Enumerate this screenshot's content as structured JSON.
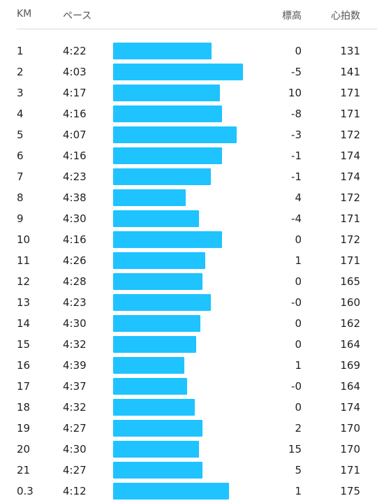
{
  "colors": {
    "bar": "#1ec3ff",
    "header_text": "#555555",
    "divider": "#d9d9d9"
  },
  "header": {
    "km": "KM",
    "pace": "ペース",
    "elevation": "標高",
    "heart_rate": "心拍数"
  },
  "splits": [
    {
      "km": "1",
      "pace": "4:22",
      "pace_fraction": 0.76,
      "elevation": "0",
      "heart_rate": "131"
    },
    {
      "km": "2",
      "pace": "4:03",
      "pace_fraction": 1.0,
      "elevation": "-5",
      "heart_rate": "141"
    },
    {
      "km": "3",
      "pace": "4:17",
      "pace_fraction": 0.82,
      "elevation": "10",
      "heart_rate": "171"
    },
    {
      "km": "4",
      "pace": "4:16",
      "pace_fraction": 0.84,
      "elevation": "-8",
      "heart_rate": "171"
    },
    {
      "km": "5",
      "pace": "4:07",
      "pace_fraction": 0.95,
      "elevation": "-3",
      "heart_rate": "172"
    },
    {
      "km": "6",
      "pace": "4:16",
      "pace_fraction": 0.84,
      "elevation": "-1",
      "heart_rate": "174"
    },
    {
      "km": "7",
      "pace": "4:23",
      "pace_fraction": 0.75,
      "elevation": "-1",
      "heart_rate": "174"
    },
    {
      "km": "8",
      "pace": "4:38",
      "pace_fraction": 0.56,
      "elevation": "4",
      "heart_rate": "172"
    },
    {
      "km": "9",
      "pace": "4:30",
      "pace_fraction": 0.66,
      "elevation": "-4",
      "heart_rate": "171"
    },
    {
      "km": "10",
      "pace": "4:16",
      "pace_fraction": 0.84,
      "elevation": "0",
      "heart_rate": "172"
    },
    {
      "km": "11",
      "pace": "4:26",
      "pace_fraction": 0.71,
      "elevation": "1",
      "heart_rate": "171"
    },
    {
      "km": "12",
      "pace": "4:28",
      "pace_fraction": 0.69,
      "elevation": "0",
      "heart_rate": "165"
    },
    {
      "km": "13",
      "pace": "4:23",
      "pace_fraction": 0.75,
      "elevation": "-0",
      "heart_rate": "160"
    },
    {
      "km": "14",
      "pace": "4:30",
      "pace_fraction": 0.67,
      "elevation": "0",
      "heart_rate": "162"
    },
    {
      "km": "15",
      "pace": "4:32",
      "pace_fraction": 0.64,
      "elevation": "0",
      "heart_rate": "164"
    },
    {
      "km": "16",
      "pace": "4:39",
      "pace_fraction": 0.55,
      "elevation": "1",
      "heart_rate": "169"
    },
    {
      "km": "17",
      "pace": "4:37",
      "pace_fraction": 0.57,
      "elevation": "-0",
      "heart_rate": "164"
    },
    {
      "km": "18",
      "pace": "4:32",
      "pace_fraction": 0.63,
      "elevation": "0",
      "heart_rate": "174"
    },
    {
      "km": "19",
      "pace": "4:27",
      "pace_fraction": 0.69,
      "elevation": "2",
      "heart_rate": "170"
    },
    {
      "km": "20",
      "pace": "4:30",
      "pace_fraction": 0.66,
      "elevation": "15",
      "heart_rate": "170"
    },
    {
      "km": "21",
      "pace": "4:27",
      "pace_fraction": 0.69,
      "elevation": "5",
      "heart_rate": "171"
    },
    {
      "km": "0.3",
      "pace": "4:12",
      "pace_fraction": 0.89,
      "elevation": "1",
      "heart_rate": "175"
    }
  ]
}
